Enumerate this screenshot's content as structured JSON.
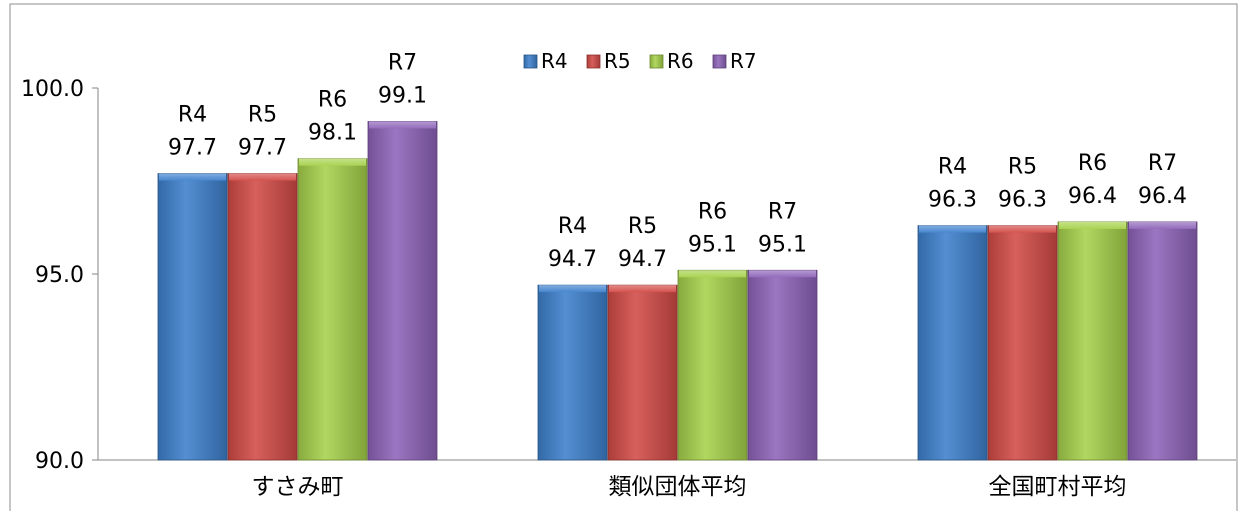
{
  "chart_data": {
    "type": "bar",
    "title": "",
    "xlabel": "",
    "ylabel": "",
    "categories": [
      "すさみ町",
      "類似団体平均",
      "全国町村平均"
    ],
    "ylim": [
      90.0,
      100.0
    ],
    "yticks": [
      90.0,
      95.0,
      100.0
    ],
    "ytick_labels": [
      "90.0",
      "95.0",
      "100.0"
    ],
    "grid": false,
    "legend_position": "top",
    "series": [
      {
        "name": "R4",
        "color": "#3d80cc",
        "values": [
          97.7,
          94.7,
          96.3
        ]
      },
      {
        "name": "R5",
        "color": "#d24a46",
        "values": [
          97.7,
          94.7,
          96.3
        ]
      },
      {
        "name": "R6",
        "color": "#a6d14a",
        "values": [
          98.1,
          95.1,
          96.4
        ]
      },
      {
        "name": "R7",
        "color": "#8d63b8",
        "values": [
          99.1,
          95.1,
          96.4
        ]
      }
    ],
    "data_labels": [
      [
        "97.7",
        "97.7",
        "98.1",
        "99.1"
      ],
      [
        "94.7",
        "94.7",
        "95.1",
        "95.1"
      ],
      [
        "96.3",
        "96.3",
        "96.4",
        "96.4"
      ]
    ]
  }
}
